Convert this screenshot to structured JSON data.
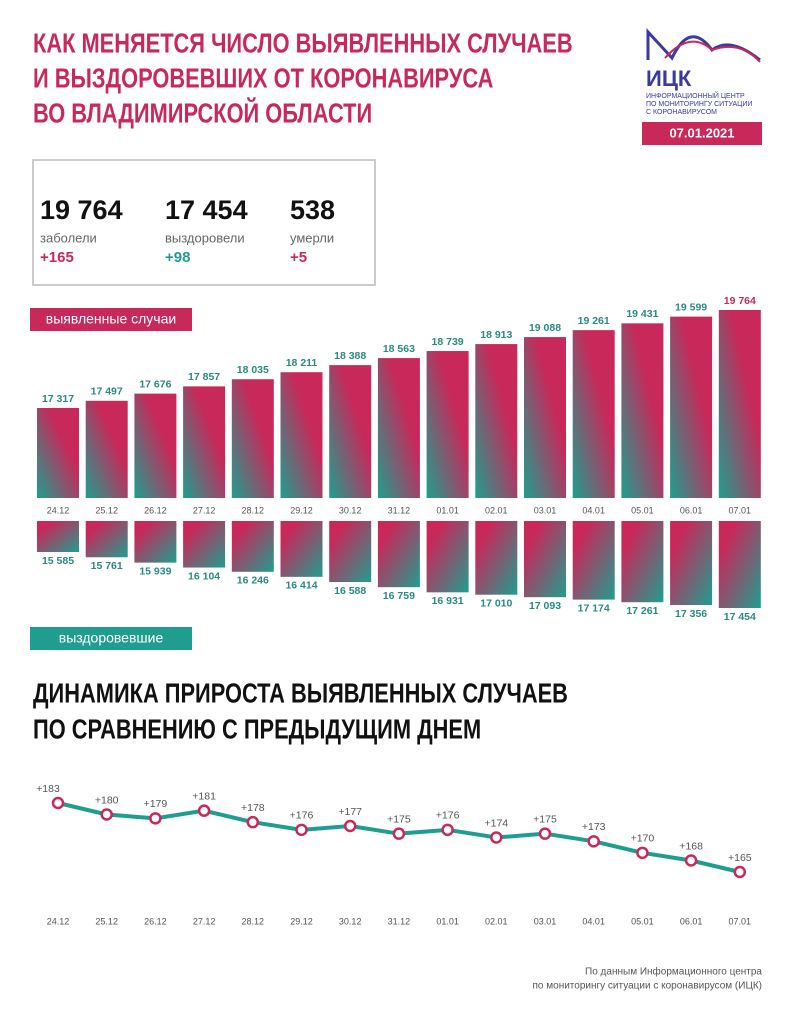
{
  "header": {
    "title": [
      "КАК МЕНЯЕТСЯ ЧИСЛО ВЫЯВЛЕННЫХ СЛУЧАЕВ",
      "И ВЫЗДОРОВЕВШИХ ОТ КОРОНАВИРУСА",
      "ВО ВЛАДИМИРСКОЙ ОБЛАСТИ"
    ],
    "logo": {
      "name": "ИЦК",
      "lines": [
        "ИНФОРМАЦИОННЫЙ ЦЕНТР",
        "ПО МОНИТОРИНГУ СИТУАЦИИ",
        "С КОРОНАВИРУСОМ"
      ]
    },
    "date": "07.01.2021"
  },
  "stats": [
    {
      "value": "19 764",
      "label": "заболели",
      "change": "+165"
    },
    {
      "value": "17 454",
      "label": "выздоровели",
      "change": "+98"
    },
    {
      "value": "538",
      "label": "умерли",
      "change": "+5"
    }
  ],
  "chart_data": [
    {
      "type": "bar",
      "title": "выявленные случаи",
      "color": "#c8285a",
      "categories": [
        "24.12",
        "25.12",
        "26.12",
        "27.12",
        "28.12",
        "29.12",
        "30.12",
        "31.12",
        "01.01",
        "02.01",
        "03.01",
        "04.01",
        "05.01",
        "06.01",
        "07.01"
      ],
      "values": [
        17317,
        17497,
        17676,
        17857,
        18035,
        18211,
        18388,
        18563,
        18739,
        18913,
        19088,
        19261,
        19431,
        19599,
        19764
      ],
      "value_labels": [
        "17 317",
        "17 497",
        "17 676",
        "17 857",
        "18 035",
        "18 211",
        "18 388",
        "18 563",
        "18 739",
        "18 913",
        "19 088",
        "19 261",
        "19 431",
        "19 599",
        "19 764"
      ]
    },
    {
      "type": "bar",
      "title": "выздоровевшие",
      "color": "#1f9e8f",
      "values": [
        15585,
        15761,
        15939,
        16104,
        16246,
        16414,
        16588,
        16759,
        16931,
        17010,
        17093,
        17174,
        17261,
        17356,
        17454
      ],
      "value_labels": [
        "15 585",
        "15 761",
        "15 939",
        "16 104",
        "16 246",
        "16 414",
        "16 588",
        "16 759",
        "16 931",
        "17 010",
        "17 093",
        "17 174",
        "17 261",
        "17 356",
        "17 454"
      ]
    },
    {
      "type": "line",
      "title": [
        "ДИНАМИКА ПРИРОСТА ВЫЯВЛЕННЫХ СЛУЧАЕВ",
        "ПО СРАВНЕНИЮ С ПРЕДЫДУЩИМ ДНЕМ"
      ],
      "color": "#1f9e8f",
      "categories": [
        "24.12",
        "25.12",
        "26.12",
        "27.12",
        "28.12",
        "29.12",
        "30.12",
        "31.12",
        "01.01",
        "02.01",
        "03.01",
        "04.01",
        "05.01",
        "06.01",
        "07.01"
      ],
      "values": [
        183,
        180,
        179,
        181,
        178,
        176,
        177,
        175,
        176,
        174,
        175,
        173,
        170,
        168,
        165
      ],
      "value_labels": [
        "+183",
        "+180",
        "+179",
        "+181",
        "+178",
        "+176",
        "+177",
        "+175",
        "+176",
        "+174",
        "+175",
        "+173",
        "+170",
        "+168",
        "+165"
      ]
    }
  ],
  "footer": [
    "По данным Информационного центра",
    "по мониторингу ситуации с коронавирусом (ИЦК)"
  ]
}
